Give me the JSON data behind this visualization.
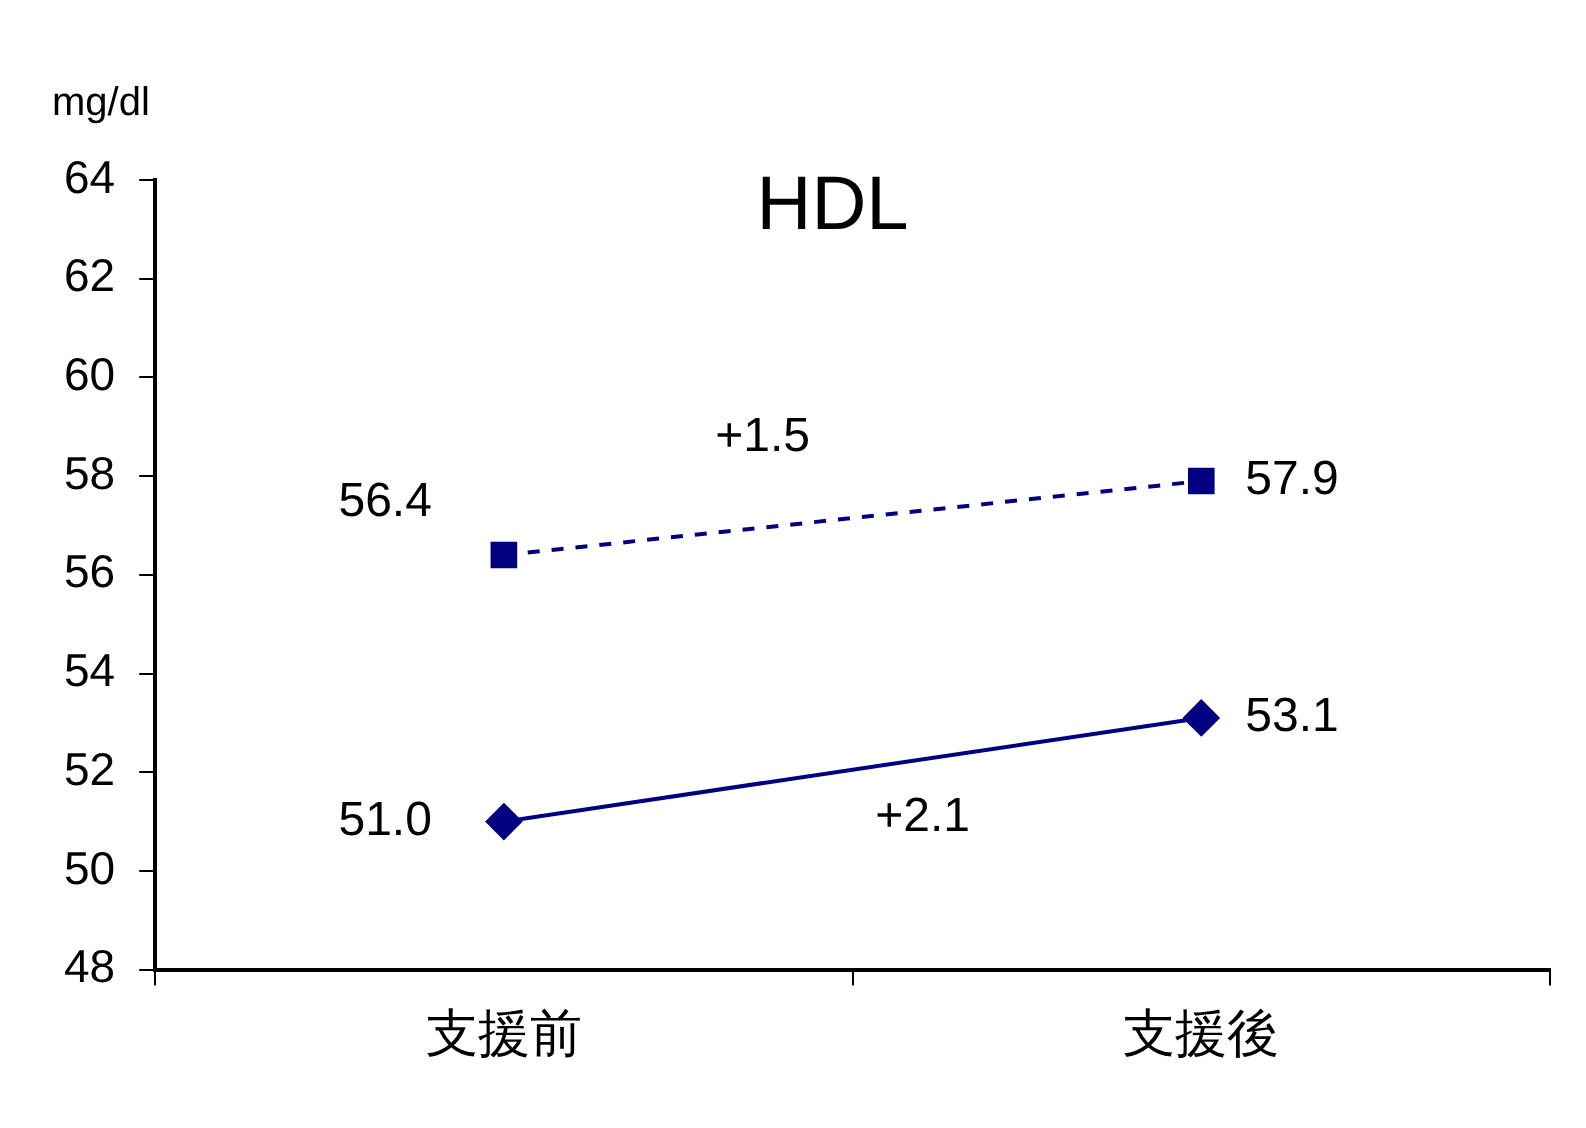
{
  "chart_data": {
    "type": "line",
    "title": "HDL",
    "ylabel": "mg/dl",
    "categories": [
      "支援前",
      "支援後"
    ],
    "series": [
      {
        "color": "#000080",
        "values": [
          56.4,
          57.9
        ],
        "value_labels": [
          "56.4",
          "57.9"
        ],
        "marker": "square",
        "line_style": "dashed"
      },
      {
        "color": "#000080",
        "values": [
          51.0,
          53.1
        ],
        "value_labels": [
          "51.0",
          "53.1"
        ],
        "marker": "diamond",
        "line_style": "solid"
      }
    ],
    "annotations": [
      "+1.5",
      "+2.1"
    ],
    "ylim": [
      48,
      64
    ],
    "yticks": [
      48,
      50,
      52,
      54,
      56,
      58,
      60,
      62,
      64
    ],
    "grid": false,
    "legend": false
  }
}
